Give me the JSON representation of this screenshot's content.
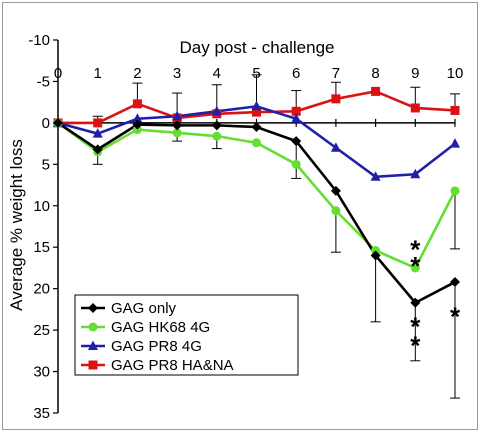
{
  "chart_data": {
    "type": "line",
    "title": "",
    "xlabel": "Day post - challenge",
    "ylabel": "Average % weight loss",
    "x": [
      0,
      1,
      2,
      3,
      4,
      5,
      6,
      7,
      8,
      9,
      10
    ],
    "xlim": [
      0,
      10
    ],
    "ylim": [
      -10,
      35
    ],
    "y_inverted": true,
    "y_ticks": [
      -10,
      -5,
      0,
      5,
      10,
      15,
      20,
      25,
      30,
      35
    ],
    "y_tick_labels": [
      "-10",
      "-5",
      "0",
      "5",
      "10",
      "15",
      "20",
      "25",
      "30",
      "35"
    ],
    "grid": false,
    "legend_position": "bottom-left",
    "series": [
      {
        "name": "GAG only",
        "color": "#000000",
        "marker": "diamond",
        "values": [
          0,
          3.2,
          0.2,
          0.3,
          0.3,
          0.5,
          2.2,
          8.2,
          16,
          21.7,
          19.2
        ],
        "err_up": [
          0,
          0,
          0,
          0,
          0,
          0,
          4.5,
          0,
          8,
          7,
          14
        ],
        "err_down": [
          0,
          0,
          0,
          0,
          0,
          0,
          0,
          0,
          0,
          0,
          0
        ]
      },
      {
        "name": "GAG HK68 4G",
        "color": "#66dd33",
        "marker": "circle",
        "values": [
          0,
          3.5,
          0.8,
          1.2,
          1.6,
          2.4,
          5,
          10.6,
          15.4,
          17.5,
          8.2
        ],
        "err_up": [
          0,
          1.5,
          0,
          1,
          1.5,
          0,
          0,
          5,
          0,
          0,
          7
        ],
        "err_down": [
          0,
          0,
          0,
          0,
          0,
          0,
          0,
          0,
          0,
          0,
          0
        ]
      },
      {
        "name": "GAG PR8 4G",
        "color": "#1f1faa",
        "marker": "triangle",
        "values": [
          0,
          1.3,
          -0.5,
          -0.8,
          -1.4,
          -2,
          -0.5,
          3,
          6.5,
          6.2,
          2.5
        ],
        "err_up": [
          0,
          0,
          0,
          0,
          0,
          0,
          0,
          0,
          0,
          0,
          0
        ],
        "err_down": [
          0,
          0,
          0,
          0,
          0,
          0,
          0,
          0,
          0,
          0,
          0
        ]
      },
      {
        "name": "GAG PR8 HA&NA",
        "color": "#dd1111",
        "marker": "square",
        "values": [
          0,
          0,
          -2.3,
          -0.6,
          -1.1,
          -1.3,
          -1.4,
          -2.9,
          -3.8,
          -1.8,
          -1.5
        ],
        "err_up": [
          0,
          0,
          0,
          0,
          0,
          0,
          0,
          0,
          0,
          0,
          0
        ],
        "err_down": [
          0,
          0.8,
          2.5,
          3,
          3.5,
          4.5,
          2.5,
          2,
          0,
          2.5,
          2
        ]
      }
    ],
    "annotations": [
      {
        "text": "*",
        "x": 9,
        "y": 14.2,
        "series": "GAG HK68 4G"
      },
      {
        "text": "*",
        "x": 9,
        "y": 16.2,
        "series": "GAG HK68 4G"
      },
      {
        "text": "*",
        "x": 9,
        "y": 23.5,
        "series": "GAG only"
      },
      {
        "text": "*",
        "x": 9,
        "y": 25.8,
        "series": "GAG only"
      },
      {
        "text": "*",
        "x": 10,
        "y": 22.3,
        "series": "GAG only"
      }
    ]
  }
}
